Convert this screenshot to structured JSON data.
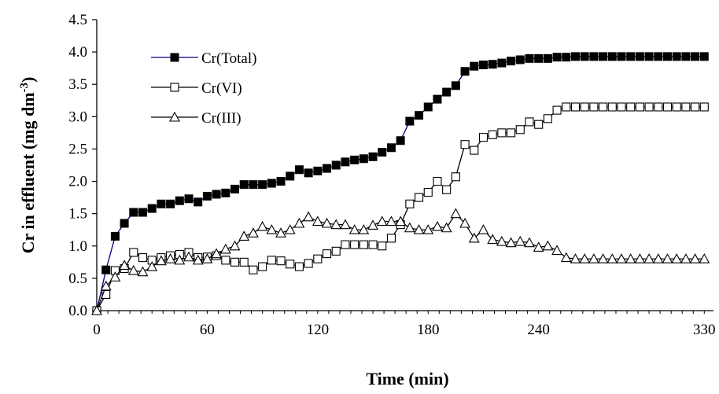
{
  "chart_data": {
    "type": "line",
    "title": "",
    "xlabel": "Time (min)",
    "ylabel": "Cr in effluent (mg dm-3)",
    "ylabel_parts": {
      "main": "Cr in effluent (mg dm",
      "sup": "-3",
      "close": ")"
    },
    "xlim": [
      0,
      335
    ],
    "ylim": [
      0,
      4.5
    ],
    "xticks": [
      0,
      60,
      120,
      180,
      240,
      330
    ],
    "xtick_labels": [
      "0",
      "60",
      "120",
      "180",
      "240",
      "330"
    ],
    "yticks": [
      0,
      0.5,
      1,
      1.5,
      2,
      2.5,
      3,
      3.5,
      4,
      4.5
    ],
    "ytick_labels": [
      "0.0",
      "0.5",
      "1.0",
      "1.5",
      "2.0",
      "2.5",
      "3.0",
      "3.5",
      "4.0",
      "4.5"
    ],
    "grid": false,
    "legend_position": "top-left",
    "x": [
      0,
      5,
      10,
      15,
      20,
      25,
      30,
      35,
      40,
      45,
      50,
      55,
      60,
      65,
      70,
      75,
      80,
      85,
      90,
      95,
      100,
      105,
      110,
      115,
      120,
      125,
      130,
      135,
      140,
      145,
      150,
      155,
      160,
      165,
      170,
      175,
      180,
      185,
      190,
      195,
      200,
      205,
      210,
      215,
      220,
      225,
      230,
      235,
      240,
      245,
      250,
      255,
      260,
      265,
      270,
      275,
      280,
      285,
      290,
      295,
      300,
      305,
      310,
      315,
      320,
      325,
      330
    ],
    "series": [
      {
        "name": "Cr(Total)",
        "marker": "filled-square",
        "color": "#000080",
        "values": [
          0.0,
          0.63,
          1.15,
          1.35,
          1.52,
          1.52,
          1.58,
          1.65,
          1.65,
          1.7,
          1.73,
          1.68,
          1.77,
          1.8,
          1.82,
          1.88,
          1.95,
          1.95,
          1.95,
          1.97,
          2.0,
          2.08,
          2.18,
          2.13,
          2.16,
          2.2,
          2.25,
          2.3,
          2.33,
          2.35,
          2.38,
          2.45,
          2.52,
          2.63,
          2.93,
          3.02,
          3.15,
          3.27,
          3.38,
          3.48,
          3.7,
          3.78,
          3.8,
          3.81,
          3.83,
          3.86,
          3.88,
          3.9,
          3.9,
          3.9,
          3.92,
          3.92,
          3.93,
          3.93,
          3.93,
          3.93,
          3.93,
          3.93,
          3.93,
          3.93,
          3.93,
          3.93,
          3.93,
          3.93,
          3.93,
          3.93,
          3.93
        ]
      },
      {
        "name": "Cr(VI)",
        "marker": "open-square",
        "color": "#000000",
        "values": [
          0.0,
          0.25,
          0.62,
          0.65,
          0.9,
          0.82,
          0.78,
          0.82,
          0.85,
          0.87,
          0.9,
          0.82,
          0.83,
          0.85,
          0.78,
          0.75,
          0.75,
          0.63,
          0.68,
          0.78,
          0.77,
          0.72,
          0.68,
          0.73,
          0.8,
          0.88,
          0.92,
          1.02,
          1.02,
          1.02,
          1.02,
          1.0,
          1.12,
          1.33,
          1.65,
          1.75,
          1.83,
          2.0,
          1.87,
          2.07,
          2.57,
          2.48,
          2.68,
          2.72,
          2.75,
          2.75,
          2.8,
          2.92,
          2.88,
          2.97,
          3.1,
          3.15,
          3.15,
          3.15,
          3.15,
          3.15,
          3.15,
          3.15,
          3.15,
          3.15,
          3.15,
          3.15,
          3.15,
          3.15,
          3.15,
          3.15,
          3.15
        ]
      },
      {
        "name": "Cr(III)",
        "marker": "open-triangle",
        "color": "#000000",
        "values": [
          0.0,
          0.38,
          0.52,
          0.7,
          0.62,
          0.6,
          0.68,
          0.77,
          0.8,
          0.78,
          0.83,
          0.78,
          0.8,
          0.88,
          0.95,
          1.0,
          1.15,
          1.2,
          1.3,
          1.25,
          1.2,
          1.25,
          1.35,
          1.45,
          1.38,
          1.35,
          1.33,
          1.33,
          1.25,
          1.25,
          1.32,
          1.38,
          1.38,
          1.38,
          1.28,
          1.25,
          1.25,
          1.3,
          1.28,
          1.5,
          1.35,
          1.12,
          1.25,
          1.1,
          1.07,
          1.05,
          1.07,
          1.05,
          0.98,
          1.0,
          0.93,
          0.82,
          0.8,
          0.8,
          0.8,
          0.8,
          0.8,
          0.8,
          0.8,
          0.8,
          0.8,
          0.8,
          0.8,
          0.8,
          0.8,
          0.8,
          0.8
        ]
      }
    ]
  }
}
